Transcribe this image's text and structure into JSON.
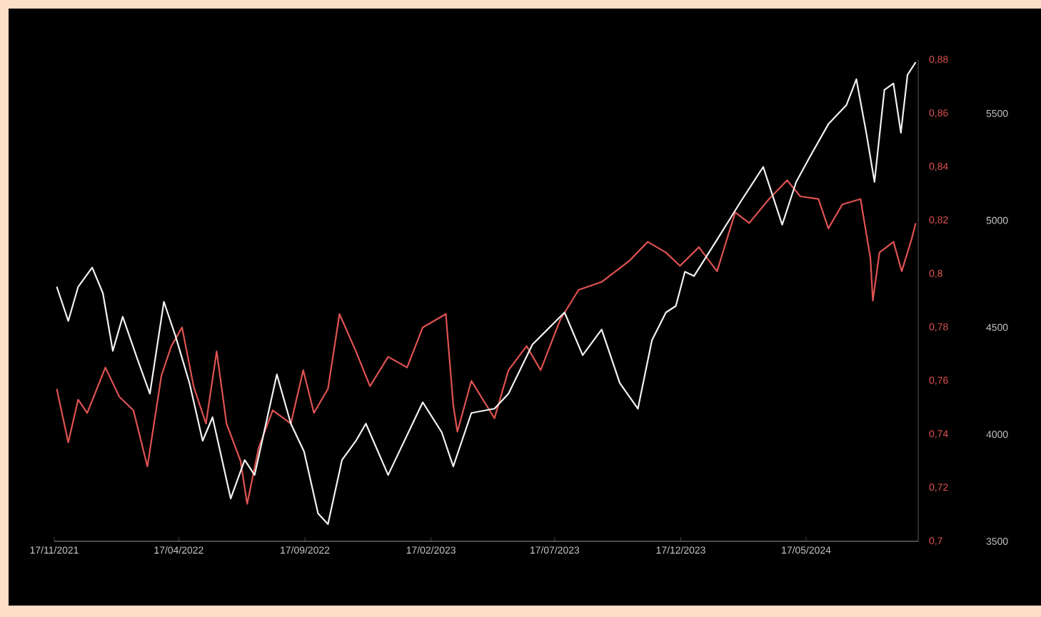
{
  "chart_data": {
    "type": "line",
    "xlim": [
      "2021-11-17",
      "2024-09-30"
    ],
    "xticks": [
      {
        "value": "2021-11-17",
        "label": "17/11/2021"
      },
      {
        "value": "2022-04-17",
        "label": "17/04/2022"
      },
      {
        "value": "2022-09-17",
        "label": "17/09/2022"
      },
      {
        "value": "2023-02-17",
        "label": "17/02/2023"
      },
      {
        "value": "2023-07-17",
        "label": "17/07/2023"
      },
      {
        "value": "2023-12-17",
        "label": "17/12/2023"
      },
      {
        "value": "2024-05-17",
        "label": "17/05/2024"
      }
    ],
    "ylim": [
      0.7,
      0.88
    ],
    "yticks": [
      {
        "value": 0.7,
        "label": "0,7"
      },
      {
        "value": 0.72,
        "label": "0,72"
      },
      {
        "value": 0.74,
        "label": "0,74"
      },
      {
        "value": 0.76,
        "label": "0,76"
      },
      {
        "value": 0.78,
        "label": "0,78"
      },
      {
        "value": 0.8,
        "label": "0,8"
      },
      {
        "value": 0.82,
        "label": "0,82"
      },
      {
        "value": 0.84,
        "label": "0,84"
      },
      {
        "value": 0.86,
        "label": "0,86"
      },
      {
        "value": 0.88,
        "label": "0,88"
      }
    ],
    "y2lim": [
      3500,
      5750
    ],
    "y2ticks": [
      3500,
      4000,
      4500,
      5000,
      5500
    ],
    "series": [
      {
        "color": "#e05252",
        "x": [
          "2021-11-20",
          "2021-12-04",
          "2021-12-16",
          "2021-12-27",
          "2022-01-18",
          "2022-02-04",
          "2022-02-21",
          "2022-03-10",
          "2022-03-27",
          "2022-04-08",
          "2022-04-21",
          "2022-05-05",
          "2022-05-20",
          "2022-06-02",
          "2022-06-14",
          "2022-07-01",
          "2022-07-09",
          "2022-07-23",
          "2022-08-09",
          "2022-08-31",
          "2022-09-15",
          "2022-09-28",
          "2022-10-15",
          "2022-10-29",
          "2022-11-18",
          "2022-12-05",
          "2022-12-27",
          "2023-01-19",
          "2023-02-07",
          "2023-03-07",
          "2023-03-16",
          "2023-03-21",
          "2023-04-07",
          "2023-05-05",
          "2023-05-22",
          "2023-06-13",
          "2023-06-30",
          "2023-07-24",
          "2023-08-15",
          "2023-09-12",
          "2023-10-16",
          "2023-11-07",
          "2023-11-29",
          "2023-12-16",
          "2024-01-08",
          "2024-01-30",
          "2024-02-21",
          "2024-03-09",
          "2024-04-02",
          "2024-04-24",
          "2024-05-10",
          "2024-06-01",
          "2024-06-13",
          "2024-06-30",
          "2024-07-22",
          "2024-08-03",
          "2024-08-06",
          "2024-08-14",
          "2024-08-31",
          "2024-09-10",
          "2024-09-22",
          "2024-09-27"
        ],
        "values": [
          0.757,
          0.737,
          0.753,
          0.748,
          0.765,
          0.754,
          0.749,
          0.728,
          0.762,
          0.773,
          0.78,
          0.758,
          0.744,
          0.771,
          0.744,
          0.73,
          0.714,
          0.735,
          0.749,
          0.744,
          0.764,
          0.748,
          0.757,
          0.785,
          0.771,
          0.758,
          0.769,
          0.765,
          0.78,
          0.785,
          0.751,
          0.741,
          0.76,
          0.746,
          0.764,
          0.773,
          0.764,
          0.783,
          0.794,
          0.797,
          0.805,
          0.812,
          0.808,
          0.803,
          0.81,
          0.801,
          0.823,
          0.819,
          0.828,
          0.835,
          0.829,
          0.828,
          0.817,
          0.826,
          0.828,
          0.806,
          0.79,
          0.808,
          0.812,
          0.801,
          0.813,
          0.819
        ]
      },
      {
        "color": "#f2f2f2",
        "axis": "y2",
        "x": [
          "2021-11-20",
          "2021-12-04",
          "2021-12-16",
          "2022-01-02",
          "2022-01-15",
          "2022-01-27",
          "2022-02-08",
          "2022-02-26",
          "2022-03-13",
          "2022-03-30",
          "2022-04-13",
          "2022-04-30",
          "2022-05-16",
          "2022-05-28",
          "2022-06-19",
          "2022-07-06",
          "2022-07-18",
          "2022-08-14",
          "2022-08-31",
          "2022-09-16",
          "2022-10-03",
          "2022-10-15",
          "2022-11-01",
          "2022-11-18",
          "2022-11-30",
          "2022-12-27",
          "2023-02-07",
          "2023-03-02",
          "2023-03-16",
          "2023-04-07",
          "2023-05-05",
          "2023-05-22",
          "2023-06-20",
          "2023-07-29",
          "2023-08-20",
          "2023-09-12",
          "2023-10-04",
          "2023-10-26",
          "2023-11-12",
          "2023-11-29",
          "2023-12-11",
          "2023-12-22",
          "2024-01-02",
          "2024-01-30",
          "2024-02-28",
          "2024-03-26",
          "2024-04-18",
          "2024-05-05",
          "2024-05-22",
          "2024-06-13",
          "2024-07-05",
          "2024-07-17",
          "2024-07-29",
          "2024-08-08",
          "2024-08-20",
          "2024-08-31",
          "2024-09-09",
          "2024-09-17",
          "2024-09-27"
        ],
        "values": [
          4690,
          4530,
          4690,
          4780,
          4660,
          4390,
          4550,
          4350,
          4190,
          4620,
          4460,
          4240,
          3970,
          4080,
          3700,
          3880,
          3810,
          4280,
          4050,
          3920,
          3630,
          3580,
          3880,
          3970,
          4050,
          3810,
          4150,
          4010,
          3850,
          4100,
          4120,
          4190,
          4420,
          4570,
          4370,
          4490,
          4240,
          4120,
          4440,
          4570,
          4600,
          4760,
          4740,
          4910,
          5090,
          5250,
          4980,
          5180,
          5300,
          5450,
          5540,
          5660,
          5410,
          5180,
          5610,
          5640,
          5410,
          5680,
          5740
        ]
      }
    ]
  }
}
